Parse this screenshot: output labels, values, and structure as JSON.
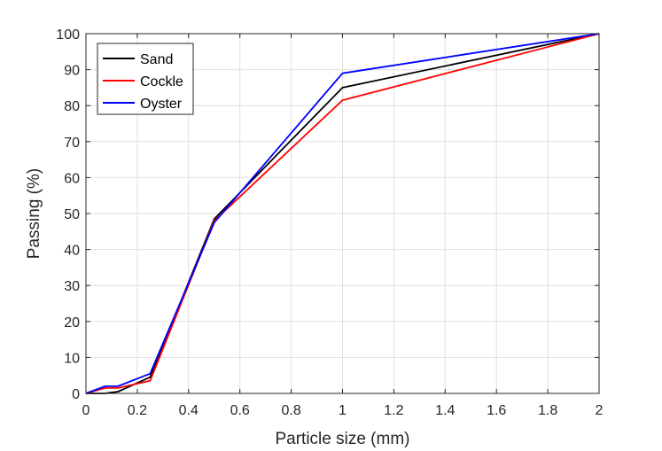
{
  "chart_data": {
    "type": "line",
    "xlabel": "Particle size (mm)",
    "ylabel": "Passing (%)",
    "xlim": [
      0,
      2
    ],
    "ylim": [
      0,
      100
    ],
    "xticks": [
      0,
      0.2,
      0.4,
      0.6,
      0.8,
      1,
      1.2,
      1.4,
      1.6,
      1.8,
      2
    ],
    "yticks": [
      0,
      10,
      20,
      30,
      40,
      50,
      60,
      70,
      80,
      90,
      100
    ],
    "xtick_labels": [
      "0",
      "0.2",
      "0.4",
      "0.6",
      "0.8",
      "1",
      "1.2",
      "1.4",
      "1.6",
      "1.8",
      "2"
    ],
    "ytick_labels": [
      "0",
      "10",
      "20",
      "30",
      "40",
      "50",
      "60",
      "70",
      "80",
      "90",
      "100"
    ],
    "grid": true,
    "legend_position": "top-left",
    "series": [
      {
        "name": "Sand",
        "color": "#000000",
        "x": [
          0,
          0.075,
          0.125,
          0.25,
          0.5,
          1,
          2
        ],
        "y": [
          0,
          0,
          0.5,
          4.5,
          48.5,
          85,
          100
        ]
      },
      {
        "name": "Cockle",
        "color": "#ff0000",
        "x": [
          0,
          0.075,
          0.125,
          0.25,
          0.5,
          1,
          2
        ],
        "y": [
          0,
          1.5,
          1.5,
          3.5,
          48,
          81.5,
          100
        ]
      },
      {
        "name": "Oyster",
        "color": "#0000ff",
        "x": [
          0,
          0.075,
          0.125,
          0.25,
          0.5,
          1,
          2
        ],
        "y": [
          0,
          2,
          2,
          5.5,
          47.5,
          89,
          100
        ]
      }
    ]
  }
}
